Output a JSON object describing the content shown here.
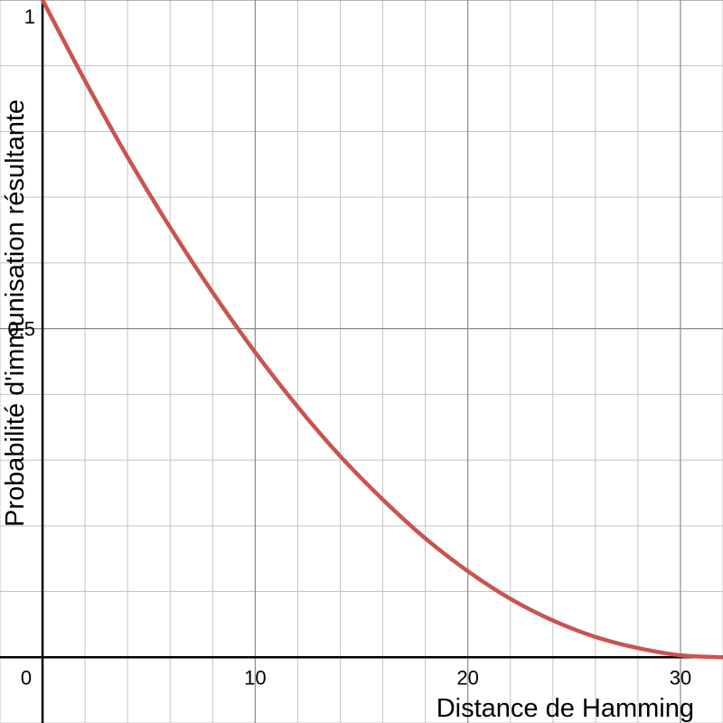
{
  "chart_data": {
    "type": "line",
    "xlabel": "Distance de Hamming",
    "ylabel": "Probabilité d'immunisation résultante",
    "xlim": [
      -2,
      32
    ],
    "ylim": [
      -0.1,
      1.0
    ],
    "x_ticks": [
      {
        "value": 0,
        "label": "0"
      },
      {
        "value": 10,
        "label": "10"
      },
      {
        "value": 20,
        "label": "20"
      },
      {
        "value": 30,
        "label": "30"
      }
    ],
    "y_ticks": [
      {
        "value": 0.5,
        "label": "0.5"
      },
      {
        "value": 1,
        "label": "1"
      }
    ],
    "grid": true,
    "series": [
      {
        "color": "#c85450",
        "x": [
          0,
          2,
          4,
          6,
          8,
          10,
          12,
          14,
          16,
          18,
          20,
          22,
          24,
          26,
          28,
          30,
          32
        ],
        "y": [
          1.0,
          0.877,
          0.761,
          0.654,
          0.555,
          0.464,
          0.381,
          0.306,
          0.24,
          0.181,
          0.131,
          0.089,
          0.056,
          0.031,
          0.014,
          0.003,
          0.0
        ]
      }
    ]
  }
}
